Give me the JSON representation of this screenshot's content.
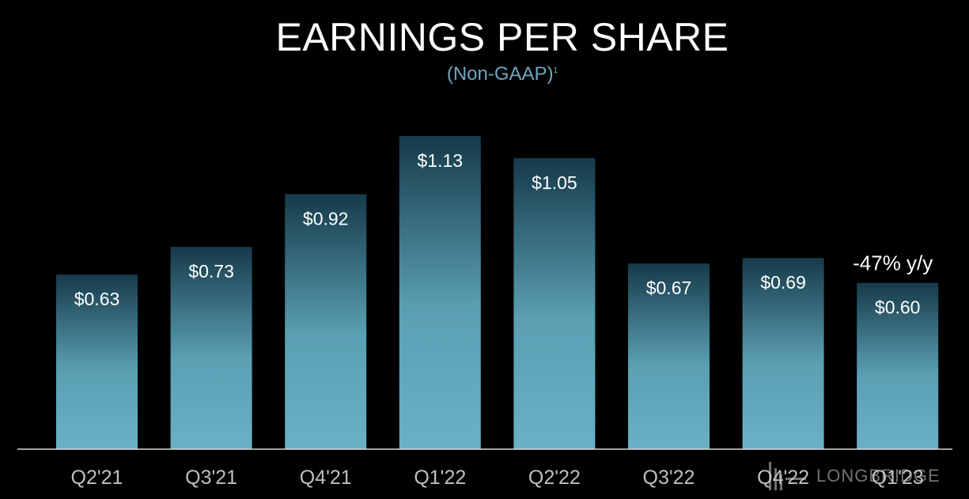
{
  "chart_data": {
    "type": "bar",
    "title": "EARNINGS PER SHARE",
    "subtitle": "(Non-GAAP)",
    "subtitle_footnote": "1",
    "categories": [
      "Q2'21",
      "Q3'21",
      "Q4'21",
      "Q1'22",
      "Q2'22",
      "Q3'22",
      "Q4'22",
      "Q1'23"
    ],
    "values": [
      0.63,
      0.73,
      0.92,
      1.13,
      1.05,
      0.67,
      0.69,
      0.6
    ],
    "data_labels": [
      "$0.63",
      "$0.73",
      "$0.92",
      "$1.13",
      "$1.05",
      "$0.67",
      "$0.69",
      "$0.60"
    ],
    "annotation": {
      "category": "Q1'23",
      "text": "-47% y/y"
    },
    "ylim": [
      0,
      1.13
    ],
    "grid": false,
    "colors": {
      "bar_top": "#163a4a",
      "bar_bottom": "#6ab1c6",
      "axis": "#d9d9d9",
      "tick_label": "#bfbfbf",
      "subtitle": "#6fa5bf",
      "background": "#000000"
    }
  },
  "watermark": {
    "text": "LONGBRIDGE"
  }
}
